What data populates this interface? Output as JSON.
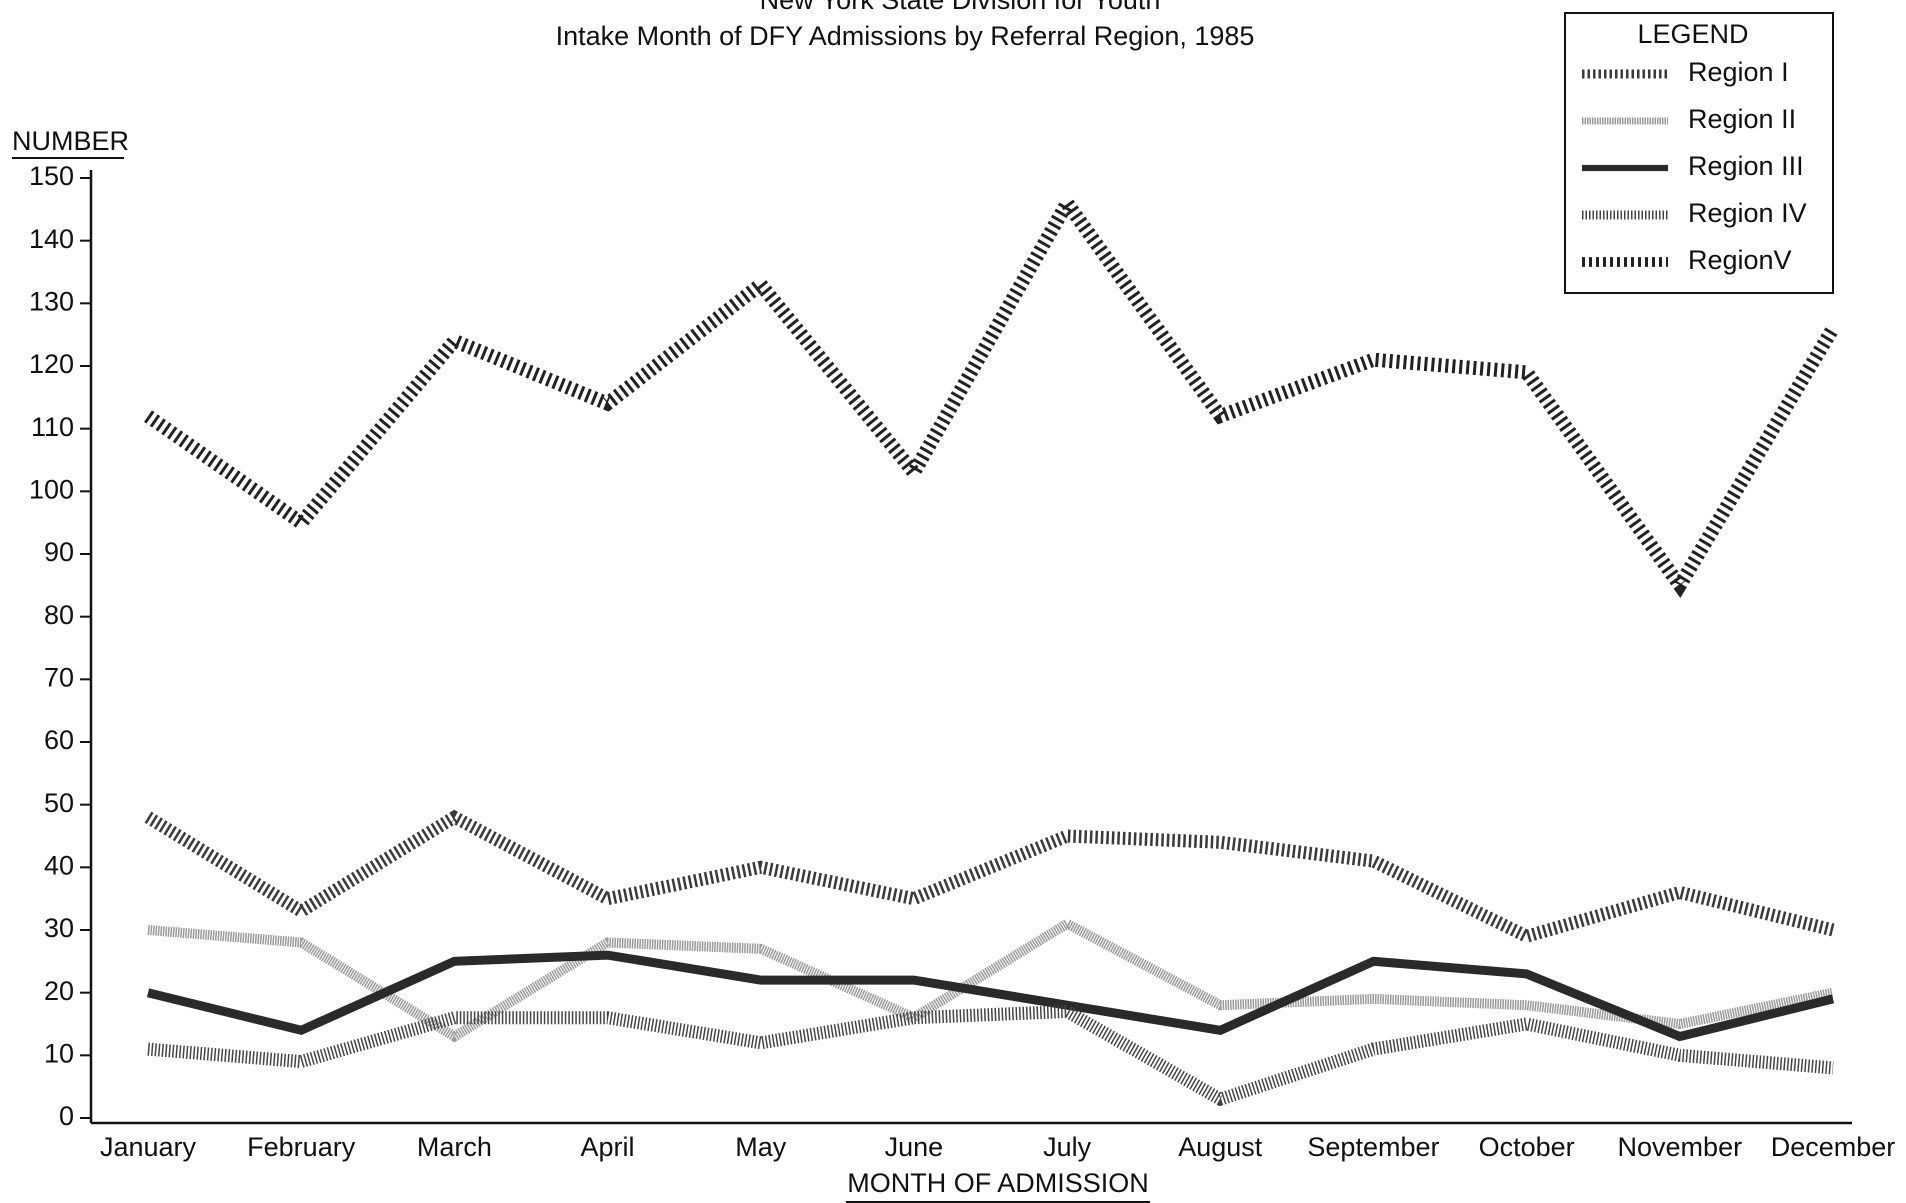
{
  "chart_data": {
    "type": "line",
    "title": "New York State Division for Youth",
    "subtitle": "Intake Month of DFY Admissions by Referral Region, 1985",
    "y_label": "NUMBER",
    "x_label": "MONTH OF ADMISSION",
    "legend_title": "LEGEND",
    "categories": [
      "January",
      "February",
      "March",
      "April",
      "May",
      "June",
      "July",
      "August",
      "September",
      "October",
      "November",
      "December"
    ],
    "series": [
      {
        "name": "Region I",
        "color": "#3a3a3a",
        "values": [
          48,
          33,
          48,
          35,
          40,
          35,
          45,
          44,
          41,
          29,
          36,
          30
        ]
      },
      {
        "name": "Region II",
        "color": "#9a9a9a",
        "values": [
          30,
          28,
          13,
          28,
          27,
          16,
          31,
          18,
          19,
          18,
          15,
          20
        ]
      },
      {
        "name": "Region III",
        "color": "#2a2a2a",
        "values": [
          20,
          14,
          25,
          26,
          22,
          22,
          18,
          14,
          25,
          23,
          13,
          19
        ]
      },
      {
        "name": "Region IV",
        "color": "#444444",
        "values": [
          11,
          9,
          16,
          16,
          12,
          16,
          17,
          3,
          11,
          15,
          10,
          8
        ]
      },
      {
        "name": "RegionV",
        "color": "#222222",
        "values": [
          112,
          95,
          124,
          114,
          133,
          103,
          146,
          112,
          121,
          119,
          85,
          126
        ]
      }
    ],
    "ylim": [
      0,
      150
    ],
    "yticks": [
      0,
      10,
      20,
      30,
      40,
      50,
      60,
      70,
      80,
      90,
      100,
      110,
      120,
      130,
      140,
      150
    ],
    "grid": false,
    "legend": "upper right"
  }
}
